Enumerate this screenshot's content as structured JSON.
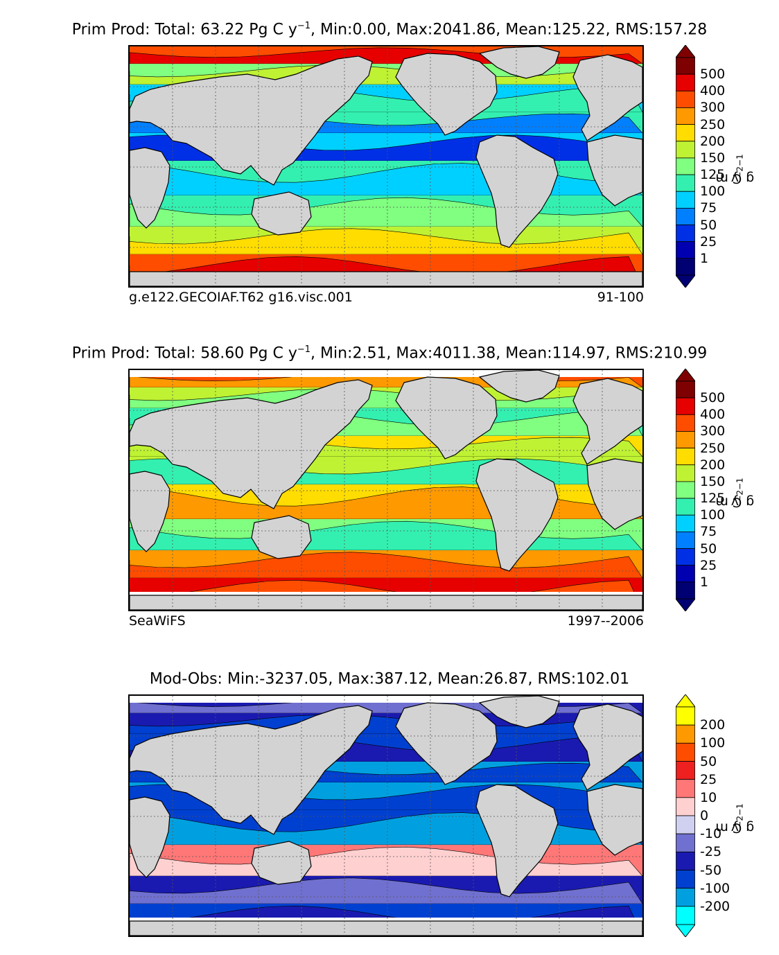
{
  "panels": [
    {
      "title_prefix": "Prim Prod: Total: 63.22 Pg C y",
      "title_exp": "−1",
      "title_suffix": ", Min:0.00, Max:2041.86, Mean:125.22, RMS:157.28",
      "left_label": "g.e122.GECOIAF.T62 g16.visc.001",
      "right_label": "91-100",
      "unit_main": "g C m",
      "unit_exp1": "−2",
      "unit_mid": " y",
      "unit_exp2": "−1",
      "colorbar_ticks": [
        "500",
        "400",
        "300",
        "250",
        "200",
        "150",
        "125",
        "100",
        "75",
        "50",
        "25",
        "1"
      ],
      "colorbar_colors": [
        "#7f0000",
        "#e60000",
        "#ff4d00",
        "#ff9900",
        "#ffdd00",
        "#bff233",
        "#80ff80",
        "#33f0b0",
        "#00d0ff",
        "#0080ff",
        "#0030e6",
        "#0000b0",
        "#000073"
      ],
      "pattern": "model"
    },
    {
      "title_prefix": "Prim Prod: Total: 58.60 Pg C y",
      "title_exp": "−1",
      "title_suffix": ", Min:2.51, Max:4011.38, Mean:114.97, RMS:210.99",
      "left_label": "SeaWiFS",
      "right_label": "1997--2006",
      "unit_main": "g C m",
      "unit_exp1": "−2",
      "unit_mid": " y",
      "unit_exp2": "−1",
      "colorbar_ticks": [
        "500",
        "400",
        "300",
        "250",
        "200",
        "150",
        "125",
        "100",
        "75",
        "50",
        "25",
        "1"
      ],
      "colorbar_colors": [
        "#7f0000",
        "#e60000",
        "#ff4d00",
        "#ff9900",
        "#ffdd00",
        "#bff233",
        "#80ff80",
        "#33f0b0",
        "#00d0ff",
        "#0080ff",
        "#0030e6",
        "#0000b0",
        "#000073"
      ],
      "pattern": "obs"
    },
    {
      "title_prefix": "Mod-Obs: Min:-3237.05, Max:387.12, Mean:26.87, RMS:102.01",
      "title_exp": "",
      "title_suffix": "",
      "left_label": "",
      "right_label": "",
      "unit_main": "g C m",
      "unit_exp1": "−2",
      "unit_mid": " y",
      "unit_exp2": "−1",
      "colorbar_ticks": [
        "200",
        "100",
        "50",
        "25",
        "10",
        "0",
        "-10",
        "-25",
        "-50",
        "-100",
        "-200"
      ],
      "colorbar_colors": [
        "#ffff00",
        "#ff9900",
        "#ff4d00",
        "#ee2020",
        "#ff7777",
        "#ffd0d0",
        "#d0d0f0",
        "#7070d0",
        "#1a1ab0",
        "#0040d0",
        "#00a0e0",
        "#00ffff"
      ],
      "pattern": "diff"
    }
  ],
  "colors": {
    "land": "#d3d3d3",
    "noData": "#ffffff",
    "grid": "#555555"
  }
}
